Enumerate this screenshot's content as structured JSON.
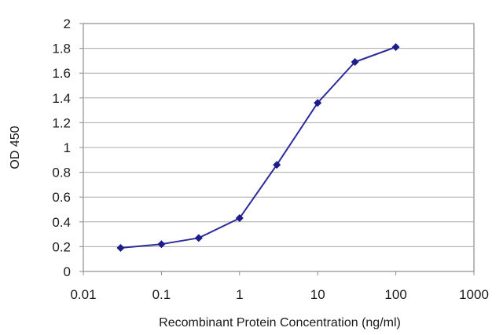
{
  "chart_data": {
    "type": "line",
    "title": "",
    "xlabel": "Recombinant Protein Concentration (ng/ml)",
    "ylabel": "OD 450",
    "x_scale": "log",
    "xlim": [
      0.01,
      1000
    ],
    "ylim": [
      0,
      2
    ],
    "x_ticks": [
      "0.01",
      "0.1",
      "1",
      "10",
      "100",
      "1000"
    ],
    "y_ticks": [
      "0",
      "0.2",
      "0.4",
      "0.6",
      "0.8",
      "1",
      "1.2",
      "1.4",
      "1.6",
      "1.8",
      "2"
    ],
    "grid": "horizontal",
    "legend": "none",
    "series": [
      {
        "color": "#2b2b9a",
        "marker": "diamond",
        "x": [
          0.03,
          0.1,
          0.3,
          1,
          3,
          10,
          30,
          100
        ],
        "y": [
          0.19,
          0.22,
          0.27,
          0.43,
          0.86,
          1.36,
          1.69,
          1.81
        ]
      }
    ],
    "colors": {
      "line": "#2b2b9a",
      "marker": "#1c1c8a",
      "grid": "#a8a8a8",
      "frame": "#8c8c8c",
      "text": "#1a1a1a"
    }
  }
}
